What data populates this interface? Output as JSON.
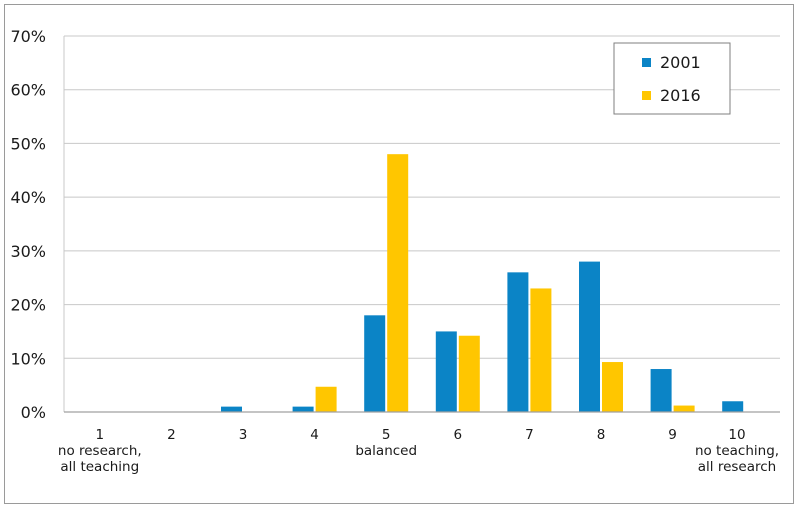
{
  "chart_data": {
    "type": "bar",
    "categories": [
      "1",
      "2",
      "3",
      "4",
      "5",
      "6",
      "7",
      "8",
      "9",
      "10"
    ],
    "category_sublabels": [
      [
        "no research,",
        "all teaching"
      ],
      [],
      [],
      [],
      [
        "balanced"
      ],
      [],
      [],
      [],
      [],
      [
        "no teaching,",
        "all research"
      ]
    ],
    "series": [
      {
        "name": "2001",
        "color": "#0B84C6",
        "values": [
          0,
          0,
          1,
          1,
          18,
          15,
          26,
          28,
          8,
          2
        ]
      },
      {
        "name": "2016",
        "color": "#FFC600",
        "values": [
          0,
          0,
          0,
          4.7,
          48,
          14.2,
          23,
          9.3,
          1.2,
          0
        ]
      }
    ],
    "y_ticks": [
      "0%",
      "10%",
      "20%",
      "30%",
      "40%",
      "50%",
      "60%",
      "70%"
    ],
    "ylim": [
      0,
      70
    ],
    "y_unit": "%",
    "grid": true,
    "legend_position": "top-right",
    "title": "",
    "xlabel": "",
    "ylabel": ""
  }
}
